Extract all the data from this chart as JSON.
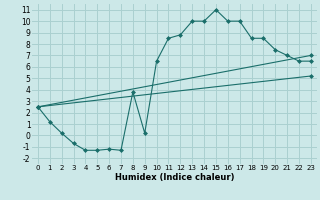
{
  "xlabel": "Humidex (Indice chaleur)",
  "bg_color": "#cce8e8",
  "grid_color": "#aad0d0",
  "line_color": "#1a6e6a",
  "xlim": [
    -0.5,
    23.5
  ],
  "ylim": [
    -2.5,
    11.5
  ],
  "xticks": [
    0,
    1,
    2,
    3,
    4,
    5,
    6,
    7,
    8,
    9,
    10,
    11,
    12,
    13,
    14,
    15,
    16,
    17,
    18,
    19,
    20,
    21,
    22,
    23
  ],
  "yticks": [
    -2,
    -1,
    0,
    1,
    2,
    3,
    4,
    5,
    6,
    7,
    8,
    9,
    10,
    11
  ],
  "series1_x": [
    0,
    1,
    2,
    3,
    4,
    5,
    6,
    7,
    8,
    9,
    10,
    11,
    12,
    13,
    14,
    15,
    16,
    17,
    18,
    19,
    20,
    21,
    22,
    23
  ],
  "series1_y": [
    2.5,
    1.2,
    0.2,
    -0.7,
    -1.3,
    -1.3,
    -1.2,
    -1.3,
    3.8,
    0.2,
    6.5,
    8.5,
    8.8,
    10.0,
    10.0,
    11.0,
    10.0,
    10.0,
    8.5,
    8.5,
    7.5,
    7.0,
    6.5,
    6.5
  ],
  "series2_x": [
    0,
    23
  ],
  "series2_y": [
    2.5,
    7.0
  ],
  "series3_x": [
    0,
    23
  ],
  "series3_y": [
    2.5,
    5.2
  ]
}
